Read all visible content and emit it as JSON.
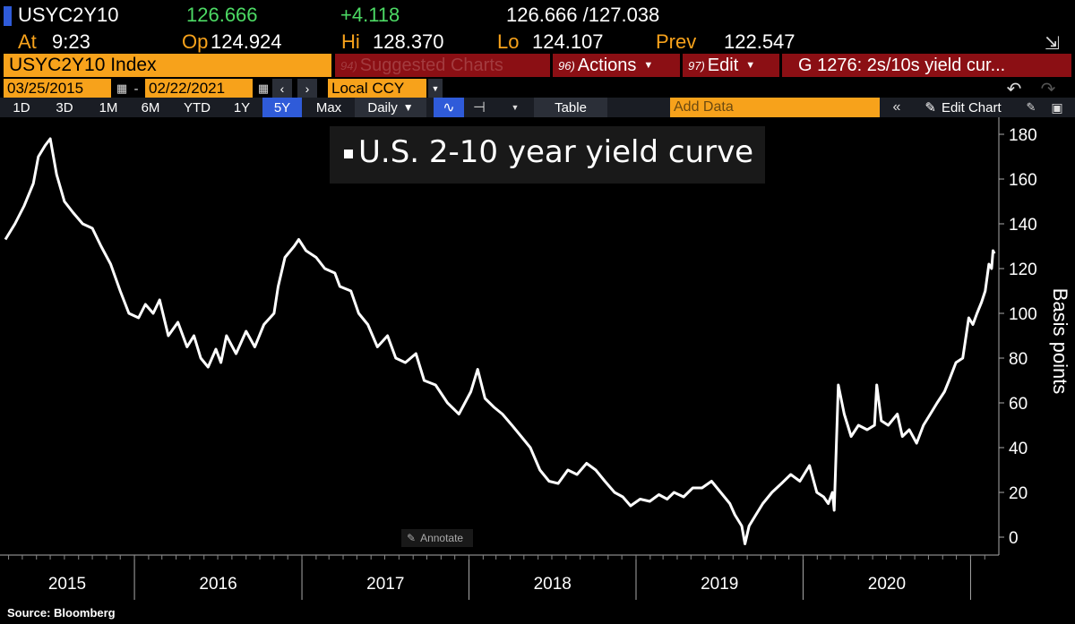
{
  "quote": {
    "ticker": "USYC2Y10",
    "last": "126.666",
    "change": "+4.118",
    "bid_ask": "126.666 /127.038",
    "at_label": "At",
    "at_time": "9:23",
    "open_label": "Op",
    "open": "124.924",
    "high_label": "Hi",
    "high": "128.370",
    "low_label": "Lo",
    "low": "124.107",
    "prev_label": "Prev",
    "prev": "122.547"
  },
  "toolbar": {
    "security": "USYC2Y10 Index",
    "suggested_num": "94)",
    "suggested_label": "Suggested Charts",
    "actions_num": "96)",
    "actions_label": "Actions",
    "edit_num": "97)",
    "edit_label": "Edit",
    "chart_name": "G 1276: 2s/10s yield cur...",
    "start_date": "03/25/2015",
    "date_sep": "-",
    "end_date": "02/22/2021",
    "currency": "Local CCY",
    "ranges": [
      "1D",
      "3D",
      "1M",
      "6M",
      "YTD",
      "1Y",
      "5Y",
      "Max"
    ],
    "active_range": "5Y",
    "frequency": "Daily",
    "table_label": "Table",
    "add_data_placeholder": "Add Data",
    "edit_chart_label": "Edit Chart"
  },
  "annotate_label": "Annotate",
  "source": "Source: Bloomberg",
  "colors": {
    "background": "#000000",
    "line": "#ffffff",
    "orange": "#f7a21b",
    "red": "#8b0f14",
    "blue": "#2f5bd9",
    "green": "#4cd964"
  },
  "chart_data": {
    "type": "line",
    "title": "U.S. 2-10 year yield curve",
    "ylabel": "Basis points",
    "xlabel": "",
    "ylim": [
      -5,
      185
    ],
    "yticks": [
      0,
      20,
      40,
      60,
      80,
      100,
      120,
      140,
      160,
      180
    ],
    "xticks": [
      "2015",
      "2016",
      "2017",
      "2018",
      "2019",
      "2020"
    ],
    "xrange": [
      "2015-03-25",
      "2021-02-22"
    ],
    "grid": false,
    "series": [
      {
        "x": [
          "2015-03-25",
          "2015-04-15",
          "2015-05-05",
          "2015-05-25",
          "2015-06-05",
          "2015-06-20",
          "2015-07-01",
          "2015-07-15",
          "2015-08-01",
          "2015-08-20",
          "2015-09-10",
          "2015-10-01",
          "2015-10-20",
          "2015-11-10",
          "2015-12-01",
          "2015-12-20",
          "2016-01-10",
          "2016-01-25",
          "2016-02-11",
          "2016-02-25",
          "2016-03-15",
          "2016-04-05",
          "2016-04-25",
          "2016-05-10",
          "2016-05-25",
          "2016-06-10",
          "2016-06-27",
          "2016-07-08",
          "2016-07-20",
          "2016-08-10",
          "2016-09-01",
          "2016-09-20",
          "2016-10-10",
          "2016-11-01",
          "2016-11-10",
          "2016-11-25",
          "2016-12-15",
          "2016-12-25",
          "2017-01-10",
          "2017-02-01",
          "2017-02-20",
          "2017-03-14",
          "2017-03-25",
          "2017-04-18",
          "2017-05-05",
          "2017-05-25",
          "2017-06-15",
          "2017-07-07",
          "2017-07-25",
          "2017-08-15",
          "2017-09-07",
          "2017-09-25",
          "2017-10-20",
          "2017-11-15",
          "2017-12-10",
          "2018-01-05",
          "2018-01-20",
          "2018-02-05",
          "2018-02-25",
          "2018-03-15",
          "2018-04-05",
          "2018-04-25",
          "2018-05-15",
          "2018-06-05",
          "2018-06-25",
          "2018-07-15",
          "2018-08-05",
          "2018-08-25",
          "2018-09-15",
          "2018-10-05",
          "2018-10-25",
          "2018-11-15",
          "2018-12-03",
          "2018-12-20",
          "2019-01-10",
          "2019-01-31",
          "2019-02-20",
          "2019-03-10",
          "2019-03-25",
          "2019-04-15",
          "2019-05-05",
          "2019-05-25",
          "2019-06-15",
          "2019-07-05",
          "2019-07-25",
          "2019-08-05",
          "2019-08-20",
          "2019-08-27",
          "2019-09-05",
          "2019-09-20",
          "2019-10-05",
          "2019-10-25",
          "2019-11-15",
          "2019-12-05",
          "2019-12-25",
          "2020-01-15",
          "2020-01-31",
          "2020-02-15",
          "2020-02-25",
          "2020-03-05",
          "2020-03-09",
          "2020-03-18",
          "2020-03-31",
          "2020-04-15",
          "2020-05-01",
          "2020-05-20",
          "2020-06-05",
          "2020-06-10",
          "2020-06-20",
          "2020-07-05",
          "2020-07-25",
          "2020-08-05",
          "2020-08-20",
          "2020-09-05",
          "2020-09-20",
          "2020-10-05",
          "2020-10-20",
          "2020-11-05",
          "2020-11-15",
          "2020-11-30",
          "2020-12-15",
          "2020-12-28",
          "2021-01-06",
          "2021-01-15",
          "2021-01-25",
          "2021-02-02",
          "2021-02-10",
          "2021-02-16",
          "2021-02-19",
          "2021-02-22"
        ],
        "y": [
          133,
          140,
          148,
          158,
          170,
          175,
          178,
          162,
          150,
          145,
          140,
          138,
          130,
          122,
          110,
          100,
          98,
          104,
          100,
          106,
          90,
          96,
          85,
          90,
          80,
          76,
          84,
          78,
          90,
          82,
          92,
          85,
          95,
          100,
          112,
          125,
          130,
          133,
          128,
          125,
          120,
          118,
          112,
          110,
          100,
          95,
          85,
          90,
          80,
          78,
          82,
          70,
          68,
          60,
          55,
          65,
          75,
          62,
          58,
          55,
          50,
          45,
          40,
          30,
          25,
          24,
          30,
          28,
          33,
          30,
          25,
          20,
          18,
          14,
          17,
          16,
          19,
          17,
          20,
          18,
          22,
          22,
          25,
          20,
          15,
          10,
          5,
          -3,
          5,
          10,
          15,
          20,
          24,
          28,
          25,
          32,
          20,
          18,
          15,
          20,
          12,
          68,
          55,
          45,
          50,
          48,
          50,
          68,
          52,
          50,
          55,
          45,
          48,
          42,
          50,
          55,
          60,
          65,
          70,
          78,
          80,
          98,
          95,
          100,
          105,
          110,
          122,
          120,
          128,
          126.666
        ]
      }
    ]
  }
}
